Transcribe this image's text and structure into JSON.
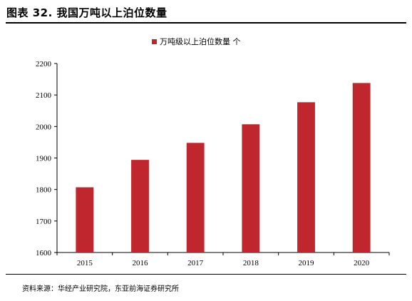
{
  "figure_title": "图表 32. 我国万吨以上泊位数量",
  "source": "资料来源：华经产业研究院，东亚前海证券研究所",
  "chart_data": {
    "type": "bar",
    "categories": [
      "2015",
      "2016",
      "2017",
      "2018",
      "2019",
      "2020"
    ],
    "series": [
      {
        "name": "万吨级以上泊位数量 个",
        "values": [
          1807,
          1894,
          1948,
          2007,
          2077,
          2138
        ],
        "color": "#c0262d"
      }
    ],
    "ylim": [
      1600,
      2200
    ],
    "yticks": [
      1600,
      1700,
      1800,
      1900,
      2000,
      2100,
      2200
    ],
    "legend_position": "top-center",
    "grid": false
  }
}
